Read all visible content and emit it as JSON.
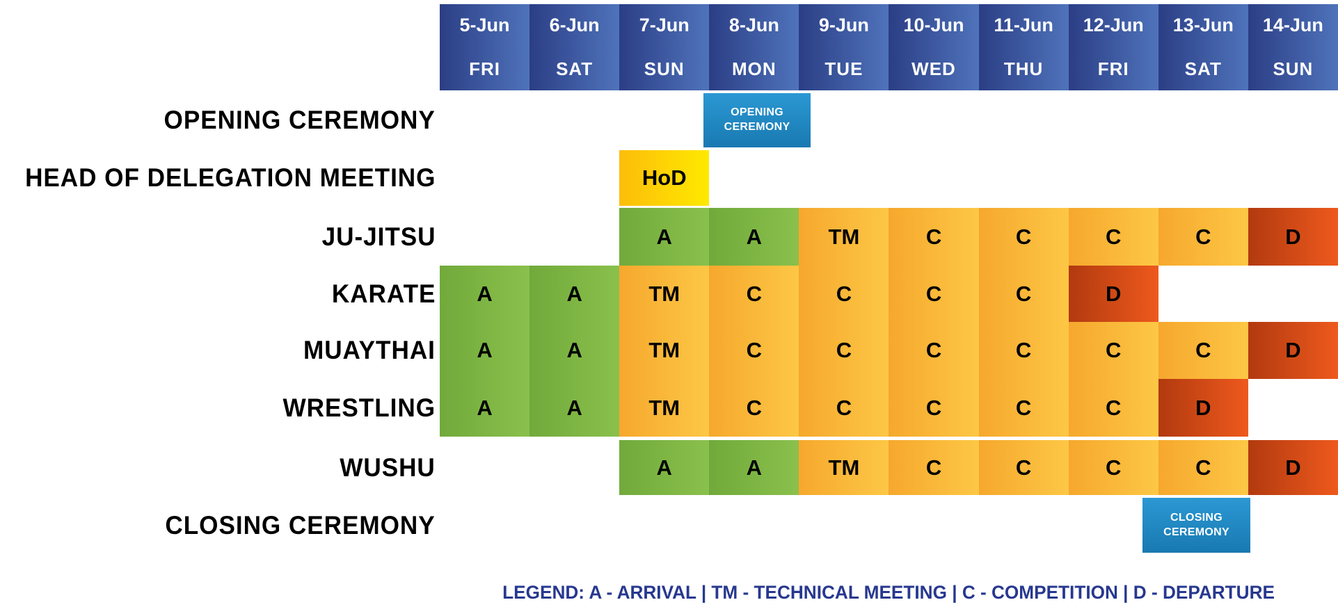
{
  "chart_data": {
    "type": "table",
    "columns": [
      {
        "date": "5-Jun",
        "day": "FRI"
      },
      {
        "date": "6-Jun",
        "day": "SAT"
      },
      {
        "date": "7-Jun",
        "day": "SUN"
      },
      {
        "date": "8-Jun",
        "day": "MON"
      },
      {
        "date": "9-Jun",
        "day": "TUE"
      },
      {
        "date": "10-Jun",
        "day": "WED"
      },
      {
        "date": "11-Jun",
        "day": "THU"
      },
      {
        "date": "12-Jun",
        "day": "FRI"
      },
      {
        "date": "13-Jun",
        "day": "SAT"
      },
      {
        "date": "14-Jun",
        "day": "SUN"
      }
    ],
    "rows": [
      {
        "label": "OPENING CEREMONY",
        "cells": [
          "",
          "",
          "",
          "OPENING CEREMONY",
          "",
          "",
          "",
          "",
          "",
          ""
        ]
      },
      {
        "label": "HEAD OF DELEGATION MEETING",
        "cells": [
          "",
          "",
          "HoD",
          "",
          "",
          "",
          "",
          "",
          "",
          ""
        ]
      },
      {
        "label": "JU-JITSU",
        "cells": [
          "",
          "",
          "A",
          "A",
          "TM",
          "C",
          "C",
          "C",
          "C",
          "D"
        ]
      },
      {
        "label": "KARATE",
        "cells": [
          "A",
          "A",
          "TM",
          "C",
          "C",
          "C",
          "C",
          "D",
          "",
          ""
        ]
      },
      {
        "label": "MUAYTHAI",
        "cells": [
          "A",
          "A",
          "TM",
          "C",
          "C",
          "C",
          "C",
          "C",
          "C",
          "D"
        ]
      },
      {
        "label": "WRESTLING",
        "cells": [
          "A",
          "A",
          "TM",
          "C",
          "C",
          "C",
          "C",
          "C",
          "D",
          ""
        ]
      },
      {
        "label": "WUSHU",
        "cells": [
          "",
          "",
          "A",
          "A",
          "TM",
          "C",
          "C",
          "C",
          "C",
          "D"
        ]
      },
      {
        "label": "CLOSING CEREMONY",
        "cells": [
          "",
          "",
          "",
          "",
          "",
          "",
          "",
          "",
          "CLOSING CEREMONY",
          ""
        ]
      }
    ],
    "legend": "LEGEND: A - ARRIVAL | TM - TECHNICAL MEETING | C - COMPETITION | D - DEPARTURE"
  },
  "colors": {
    "legend_text": "#27388f",
    "gradients": {
      "header": [
        "#2b3e85",
        "#4f73bb"
      ],
      "arrival": [
        "#71aa3b",
        "#8ac04c"
      ],
      "competition": [
        "#f6a82d",
        "#fdc745"
      ],
      "departure": [
        "#b23a0f",
        "#ee591d"
      ],
      "hod": [
        "#fcbd0a",
        "#ffe900"
      ],
      "ceremony": [
        "#2b98d3",
        "#1979b1"
      ]
    }
  }
}
